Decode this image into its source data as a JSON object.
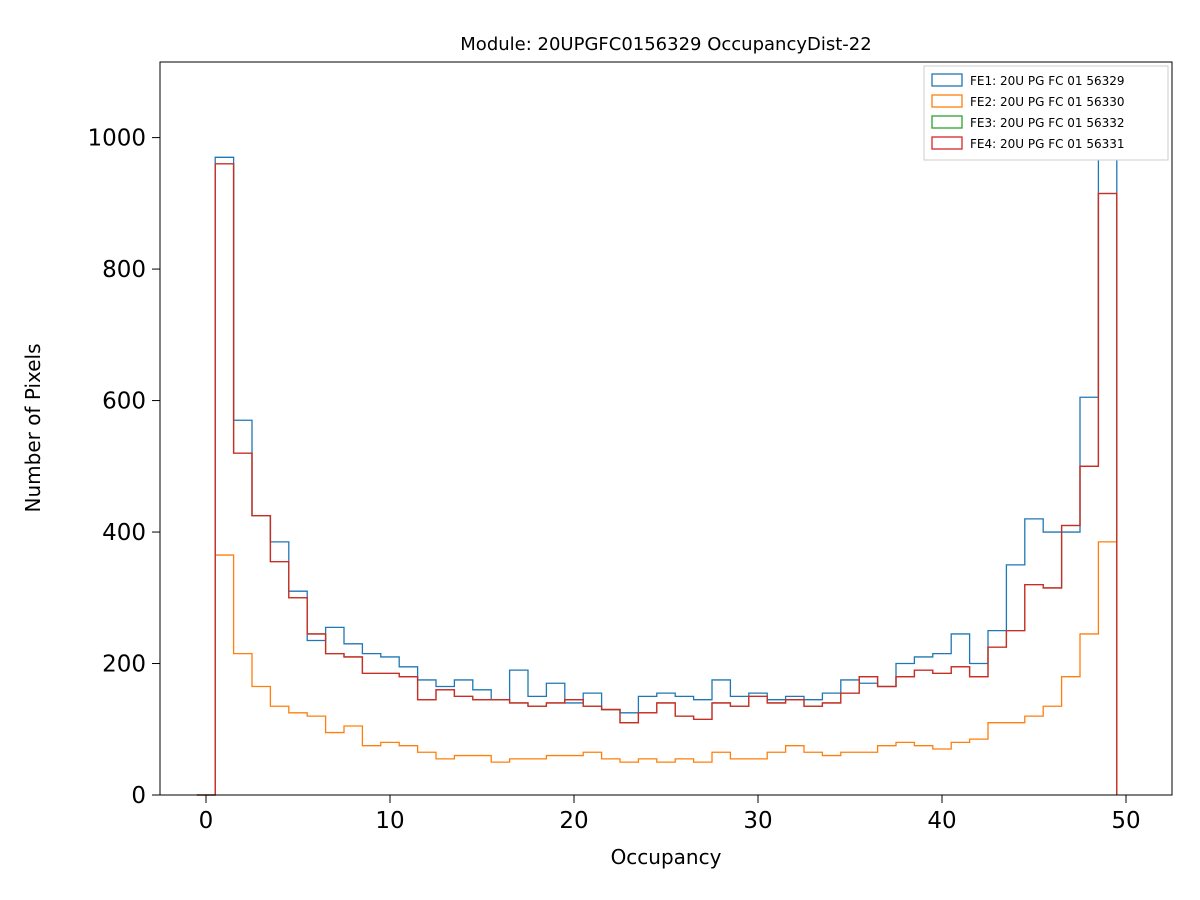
{
  "figure": {
    "title": "Module: 20UPGFC0156329 OccupancyDist-22"
  },
  "chart_data": {
    "type": "line",
    "style": "unfilled-step-histogram",
    "title": "Module: 20UPGFC0156329 OccupancyDist-22",
    "xlabel": "Occupancy",
    "ylabel": "Number of Pixels",
    "xlim": [
      -2.5,
      52.5
    ],
    "ylim": [
      0,
      1115
    ],
    "xticks": [
      0,
      10,
      20,
      30,
      40,
      50
    ],
    "yticks": [
      0,
      200,
      400,
      600,
      800,
      1000
    ],
    "grid": false,
    "legend_position": "upper right",
    "bin_width": 1,
    "bin_centers": [
      0,
      1,
      2,
      3,
      4,
      5,
      6,
      7,
      8,
      9,
      10,
      11,
      12,
      13,
      14,
      15,
      16,
      17,
      18,
      19,
      20,
      21,
      22,
      23,
      24,
      25,
      26,
      27,
      28,
      29,
      30,
      31,
      32,
      33,
      34,
      35,
      36,
      37,
      38,
      39,
      40,
      41,
      42,
      43,
      44,
      45,
      46,
      47,
      48,
      49
    ],
    "series": [
      {
        "name": "FE1: 20U PG FC 01 56329",
        "color": "#1f77b4",
        "values": [
          0,
          970,
          570,
          425,
          385,
          310,
          235,
          255,
          230,
          215,
          210,
          195,
          175,
          165,
          175,
          160,
          145,
          190,
          150,
          170,
          140,
          155,
          130,
          125,
          150,
          155,
          150,
          145,
          175,
          150,
          155,
          145,
          150,
          145,
          155,
          175,
          170,
          165,
          200,
          210,
          215,
          245,
          200,
          250,
          350,
          420,
          400,
          400,
          605,
          1060
        ]
      },
      {
        "name": "FE2: 20U PG FC 01 56330",
        "color": "#ff7f0e",
        "values": [
          0,
          365,
          215,
          165,
          135,
          125,
          120,
          95,
          105,
          75,
          80,
          75,
          65,
          55,
          60,
          60,
          50,
          55,
          55,
          60,
          60,
          65,
          55,
          50,
          55,
          50,
          55,
          50,
          65,
          55,
          55,
          65,
          75,
          65,
          60,
          65,
          65,
          75,
          80,
          75,
          70,
          80,
          85,
          110,
          110,
          120,
          135,
          180,
          245,
          385
        ]
      },
      {
        "name": "FE3: 20U PG FC 01 56332",
        "color": "#2ca02c",
        "values": [
          0,
          960,
          520,
          425,
          355,
          300,
          245,
          215,
          210,
          185,
          185,
          180,
          145,
          160,
          150,
          145,
          145,
          140,
          135,
          140,
          145,
          135,
          130,
          110,
          125,
          140,
          120,
          115,
          140,
          135,
          150,
          140,
          145,
          135,
          140,
          155,
          180,
          165,
          180,
          190,
          185,
          195,
          180,
          225,
          250,
          320,
          315,
          410,
          500,
          915
        ]
      },
      {
        "name": "FE4: 20U PG FC 01 56331",
        "color": "#d62728",
        "values": [
          0,
          960,
          520,
          425,
          355,
          300,
          245,
          215,
          210,
          185,
          185,
          180,
          145,
          160,
          150,
          145,
          145,
          140,
          135,
          140,
          145,
          135,
          130,
          110,
          125,
          140,
          120,
          115,
          140,
          135,
          150,
          140,
          145,
          135,
          140,
          155,
          180,
          165,
          180,
          190,
          185,
          195,
          180,
          225,
          250,
          320,
          315,
          410,
          500,
          915
        ]
      }
    ]
  }
}
